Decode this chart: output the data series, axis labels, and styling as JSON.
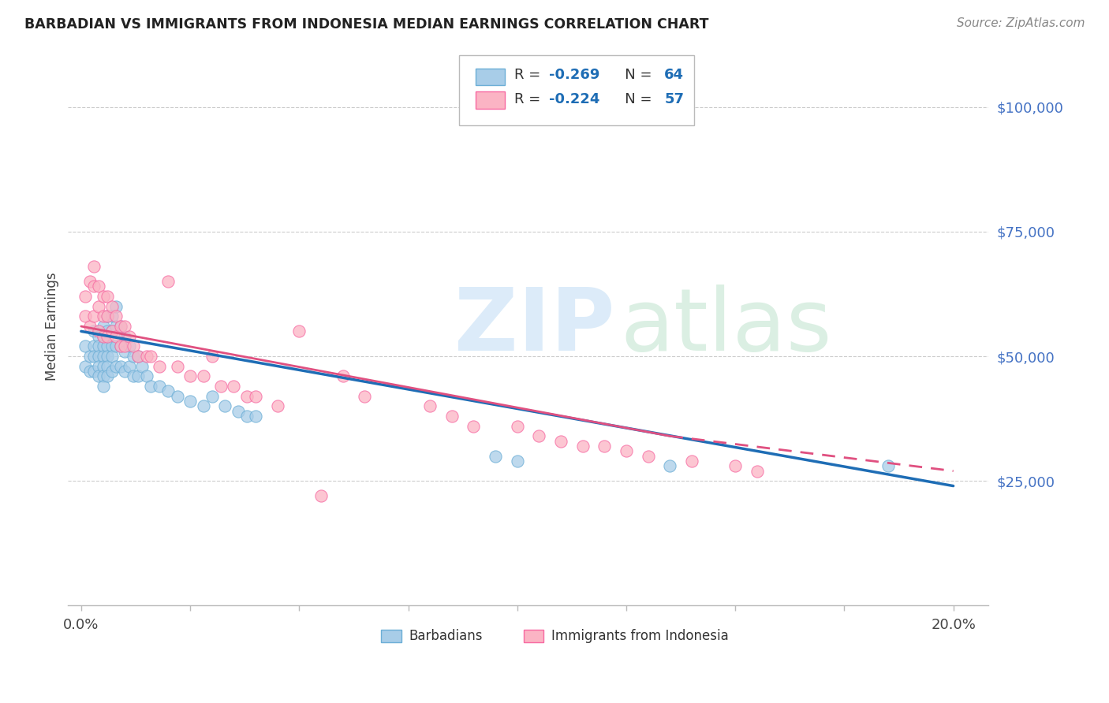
{
  "title": "BARBADIAN VS IMMIGRANTS FROM INDONESIA MEDIAN EARNINGS CORRELATION CHART",
  "source": "Source: ZipAtlas.com",
  "ylabel": "Median Earnings",
  "yticks": [
    25000,
    50000,
    75000,
    100000
  ],
  "ytick_labels": [
    "$25,000",
    "$50,000",
    "$75,000",
    "$100,000"
  ],
  "blue_scatter_color": "#a8cde8",
  "blue_edge_color": "#6baed6",
  "pink_scatter_color": "#fbb4c4",
  "pink_edge_color": "#f768a1",
  "blue_line_color": "#1e6db5",
  "pink_line_color": "#e05080",
  "background_color": "#ffffff",
  "grid_color": "#cccccc",
  "blue_scatter": {
    "x": [
      0.001,
      0.001,
      0.002,
      0.002,
      0.003,
      0.003,
      0.003,
      0.003,
      0.004,
      0.004,
      0.004,
      0.004,
      0.004,
      0.005,
      0.005,
      0.005,
      0.005,
      0.005,
      0.005,
      0.005,
      0.006,
      0.006,
      0.006,
      0.006,
      0.006,
      0.006,
      0.007,
      0.007,
      0.007,
      0.007,
      0.007,
      0.008,
      0.008,
      0.008,
      0.008,
      0.009,
      0.009,
      0.009,
      0.01,
      0.01,
      0.01,
      0.011,
      0.011,
      0.012,
      0.012,
      0.013,
      0.013,
      0.014,
      0.015,
      0.016,
      0.018,
      0.02,
      0.022,
      0.025,
      0.028,
      0.03,
      0.033,
      0.036,
      0.038,
      0.04,
      0.095,
      0.1,
      0.135,
      0.185
    ],
    "y": [
      52000,
      48000,
      50000,
      47000,
      55000,
      52000,
      50000,
      47000,
      54000,
      52000,
      50000,
      48000,
      46000,
      56000,
      54000,
      52000,
      50000,
      48000,
      46000,
      44000,
      58000,
      55000,
      52000,
      50000,
      48000,
      46000,
      58000,
      55000,
      52000,
      50000,
      47000,
      60000,
      56000,
      52000,
      48000,
      56000,
      52000,
      48000,
      54000,
      51000,
      47000,
      52000,
      48000,
      50000,
      46000,
      50000,
      46000,
      48000,
      46000,
      44000,
      44000,
      43000,
      42000,
      41000,
      40000,
      42000,
      40000,
      39000,
      38000,
      38000,
      30000,
      29000,
      28000,
      28000
    ]
  },
  "pink_scatter": {
    "x": [
      0.001,
      0.001,
      0.002,
      0.002,
      0.003,
      0.003,
      0.003,
      0.004,
      0.004,
      0.004,
      0.005,
      0.005,
      0.005,
      0.006,
      0.006,
      0.006,
      0.007,
      0.007,
      0.008,
      0.008,
      0.009,
      0.009,
      0.01,
      0.01,
      0.011,
      0.012,
      0.013,
      0.015,
      0.016,
      0.018,
      0.02,
      0.022,
      0.025,
      0.028,
      0.03,
      0.032,
      0.035,
      0.038,
      0.04,
      0.045,
      0.05,
      0.055,
      0.06,
      0.065,
      0.08,
      0.085,
      0.09,
      0.1,
      0.105,
      0.11,
      0.115,
      0.12,
      0.125,
      0.13,
      0.14,
      0.15,
      0.155
    ],
    "y": [
      62000,
      58000,
      65000,
      56000,
      68000,
      64000,
      58000,
      64000,
      60000,
      55000,
      62000,
      58000,
      54000,
      62000,
      58000,
      54000,
      60000,
      55000,
      58000,
      54000,
      56000,
      52000,
      56000,
      52000,
      54000,
      52000,
      50000,
      50000,
      50000,
      48000,
      65000,
      48000,
      46000,
      46000,
      50000,
      44000,
      44000,
      42000,
      42000,
      40000,
      55000,
      22000,
      46000,
      42000,
      40000,
      38000,
      36000,
      36000,
      34000,
      33000,
      32000,
      32000,
      31000,
      30000,
      29000,
      28000,
      27000
    ]
  },
  "blue_trend": [
    0.0,
    55000,
    0.2,
    24000
  ],
  "pink_trend_solid": [
    0.0,
    56000,
    0.135,
    34000
  ],
  "pink_trend_dashed": [
    0.135,
    34000,
    0.2,
    27000
  ],
  "xlim": [
    -0.003,
    0.208
  ],
  "ylim": [
    0,
    112000
  ],
  "xtick_positions": [
    0.0,
    0.025,
    0.05,
    0.075,
    0.1,
    0.125,
    0.15,
    0.175,
    0.2
  ],
  "legend_R1": "R = ",
  "legend_V1": "-0.269",
  "legend_N1": "   N = ",
  "legend_NV1": "64",
  "legend_R2": "R = ",
  "legend_V2": "-0.224",
  "legend_N2": "   N = ",
  "legend_NV2": "57"
}
